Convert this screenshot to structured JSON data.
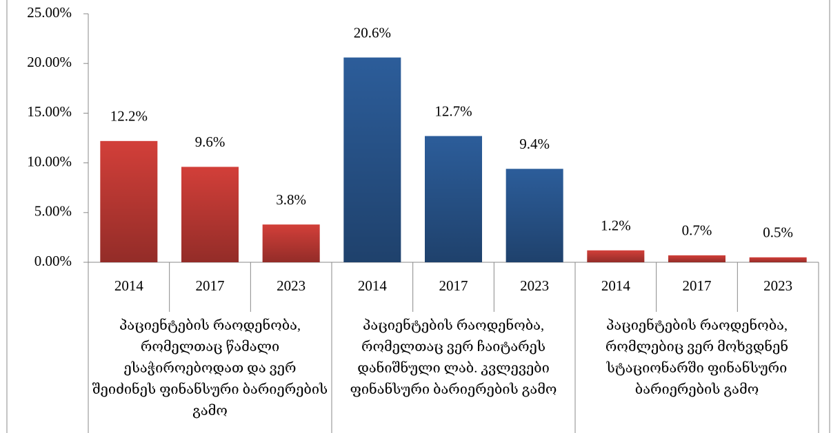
{
  "chart_data": {
    "type": "bar",
    "categories": [
      "2014",
      "2017",
      "2023"
    ],
    "series": [
      {
        "name": "პაციენტების რაოდენობა, რომელთაც წამალი ესაჭიროებოდათ და ვერ შეიძინეს ფინანსური ბარიერების გამო",
        "color": "#d23f39",
        "values": [
          12.2,
          9.6,
          3.8
        ],
        "value_labels": [
          "12.2%",
          "9.6%",
          "3.8%"
        ]
      },
      {
        "name": "პაციენტების რაოდენობა, რომელთაც ვერ ჩაიტარეს დანიშნული ლაბ. კვლევები ფინანსური ბარიერების გამო",
        "color": "#2c5d9a",
        "values": [
          20.6,
          12.7,
          9.4
        ],
        "value_labels": [
          "20.6%",
          "12.7%",
          "9.4%"
        ]
      },
      {
        "name": "პაციენტების რაოდენობა, რომლებიც ვერ მოხვდნენ სტაციონარში ფინანსური ბარიერების გამო",
        "color": "#d23f39",
        "values": [
          1.2,
          0.7,
          0.5
        ],
        "value_labels": [
          "1.2%",
          "0.7%",
          "0.5%"
        ]
      }
    ],
    "ylim": [
      0,
      25
    ],
    "yticks": [
      {
        "value": 0,
        "label": "0.00%"
      },
      {
        "value": 5,
        "label": "5.00%"
      },
      {
        "value": 10,
        "label": "10.00%"
      },
      {
        "value": 15,
        "label": "15.00%"
      },
      {
        "value": 20,
        "label": "20.00%"
      },
      {
        "value": 25,
        "label": "25.00%"
      }
    ]
  }
}
